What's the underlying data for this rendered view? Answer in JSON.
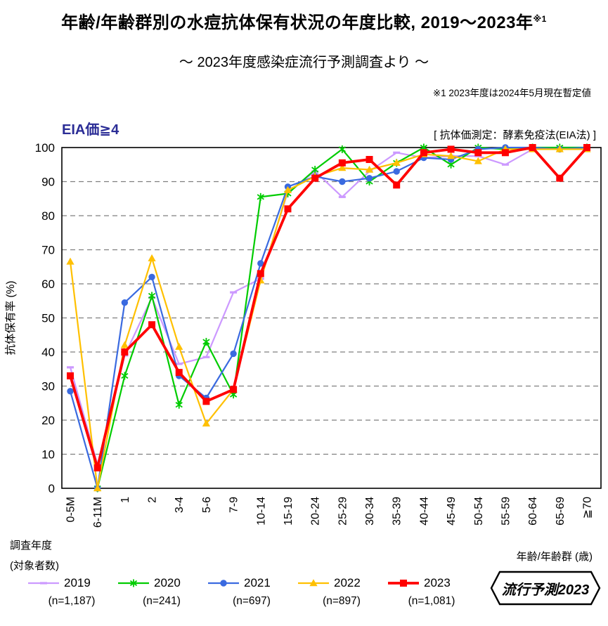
{
  "header": {
    "title": "年齢/年齢群別の水痘抗体保有状況の年度比較, 2019～2023年",
    "title_superscript": "※1",
    "subtitle": "～ 2023年度感染症流行予測調査より ～",
    "note": "※1  2023年度は2024年5月現在暫定値"
  },
  "chart_labels": {
    "threshold_label": "EIA価≧4",
    "method_label": "[ 抗体価測定：酵素免疫法(EIA法) ]",
    "legend_title_line1": "調査年度",
    "legend_title_line2": "(対象者数)",
    "badge": "流行予測2023"
  },
  "chart_data": {
    "type": "line",
    "title": "年齢/年齢群別の水痘抗体保有状況の年度比較, 2019～2023年",
    "ylabel": "抗体保有率 (%)",
    "xlabel": "年齢/年齢群 (歳)",
    "ylim": [
      0,
      100
    ],
    "ytick_step": 10,
    "grid": "horizontal-dashed",
    "legend_position": "bottom",
    "categories": [
      "0-5M",
      "6-11M",
      "1",
      "2",
      "3-4",
      "5-6",
      "7-9",
      "10-14",
      "15-19",
      "20-24",
      "25-29",
      "30-34",
      "35-39",
      "40-44",
      "45-49",
      "50-54",
      "55-59",
      "60-64",
      "65-69",
      "≧70"
    ],
    "series": [
      {
        "name": "2019",
        "n_label": "(n=1,187)",
        "color": "#CC99FF",
        "marker": "dash",
        "line_width": 2.2,
        "values": [
          35.5,
          7,
          39,
          56,
          36.5,
          38.5,
          57.5,
          61.5,
          87,
          93,
          85.5,
          93,
          98.5,
          97,
          97.5,
          97.5,
          95,
          99.5,
          100,
          100
        ]
      },
      {
        "name": "2020",
        "n_label": "(n=241)",
        "color": "#00CC00",
        "marker": "star",
        "line_width": 2.2,
        "values": [
          null,
          0,
          33,
          56.5,
          24.5,
          43,
          27.5,
          85.5,
          86.5,
          93.5,
          99.5,
          90,
          95.5,
          100,
          95,
          100,
          99.5,
          100,
          100,
          100
        ]
      },
      {
        "name": "2021",
        "n_label": "(n=697)",
        "color": "#3A6AE0",
        "marker": "circle",
        "line_width": 2.2,
        "values": [
          28.5,
          0,
          54.5,
          62,
          33,
          26.5,
          39.5,
          66,
          88.5,
          91.5,
          90,
          91,
          93,
          97,
          96.5,
          99.5,
          100,
          100,
          99.5,
          100
        ]
      },
      {
        "name": "2022",
        "n_label": "(n=897)",
        "color": "#FFC000",
        "marker": "triangle",
        "line_width": 2.2,
        "values": [
          66.5,
          0,
          42,
          67.5,
          41.5,
          19,
          29,
          61,
          87.5,
          91.5,
          94,
          93.5,
          95.5,
          98,
          97.5,
          96,
          99.5,
          99.5,
          99.5,
          99.5
        ]
      },
      {
        "name": "2023",
        "n_label": "(n=1,081)",
        "color": "#FF0000",
        "marker": "square",
        "line_width": 3.8,
        "values": [
          33,
          6,
          40,
          48,
          34,
          25.5,
          29,
          63,
          82,
          91,
          95.5,
          96.5,
          89,
          98.5,
          99.5,
          98.5,
          98.5,
          100,
          91,
          100
        ]
      }
    ]
  }
}
